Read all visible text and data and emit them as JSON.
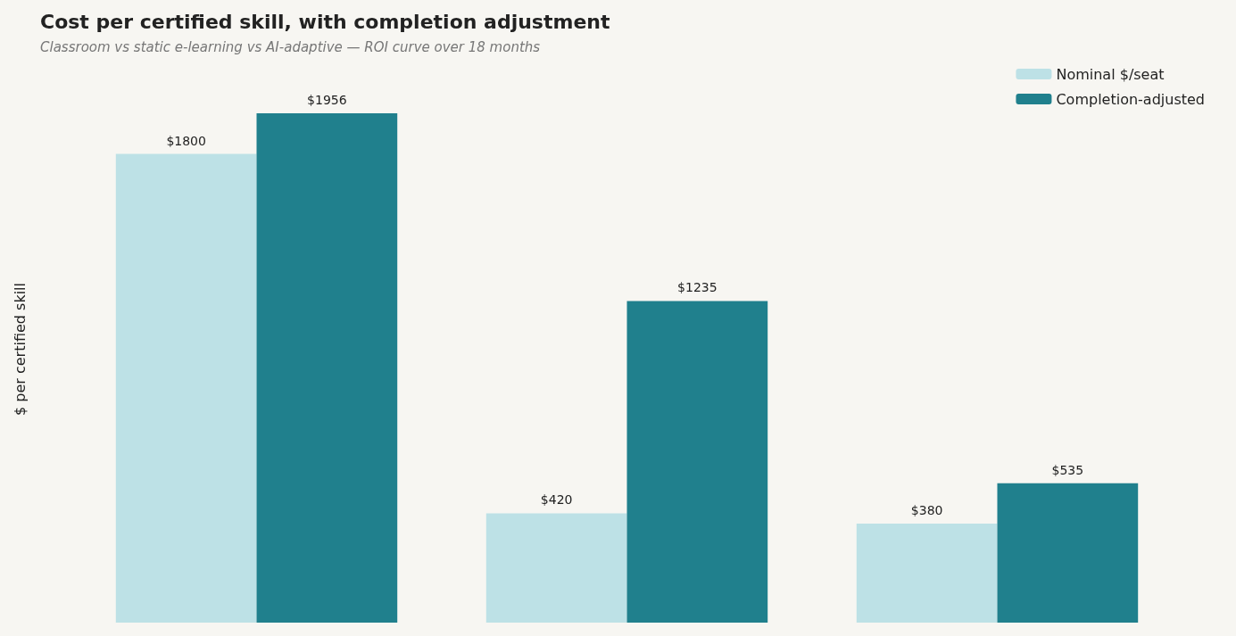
{
  "chart_data": {
    "type": "bar",
    "title": "Cost per certified skill, with completion adjustment",
    "subtitle": "Classroom vs static e-learning vs AI-adaptive — ROI curve over 18 months",
    "ylabel": "$ per certified skill",
    "categories": [
      null,
      null,
      null
    ],
    "series": [
      {
        "name": "Nominal $/seat",
        "color": "#bde1e6",
        "values": [
          1800,
          420,
          380
        ],
        "value_labels": [
          "$1800",
          "$420",
          "$380"
        ]
      },
      {
        "name": "Completion-adjusted",
        "color": "#20808d",
        "values": [
          1956,
          1235,
          535
        ],
        "value_labels": [
          "$1956",
          "$1235",
          "$535"
        ]
      }
    ],
    "legend": "top right",
    "tick_labels": false
  }
}
